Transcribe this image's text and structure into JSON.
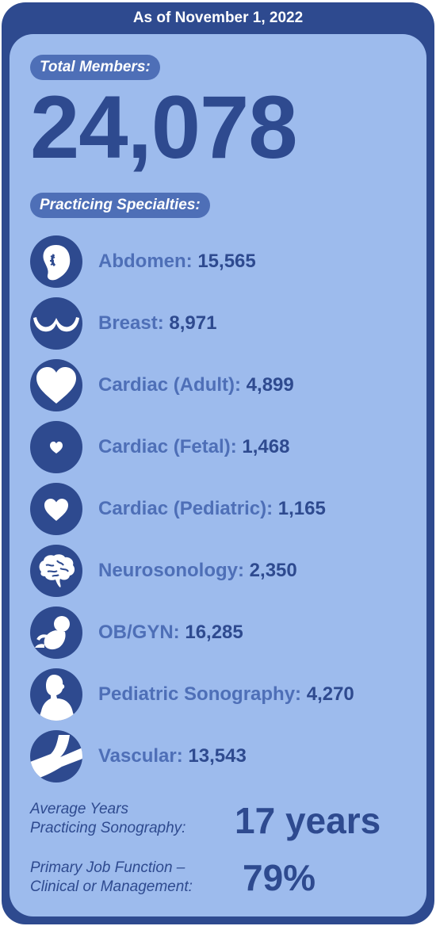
{
  "header": {
    "date_label": "As of November 1, 2022"
  },
  "total": {
    "label": "Total Members:",
    "value": "24,078"
  },
  "specialties": {
    "label": "Practicing Specialties:",
    "items": [
      {
        "icon": "kidney-icon",
        "label": "Abdomen:",
        "value": "15,565"
      },
      {
        "icon": "breast-icon",
        "label": "Breast:",
        "value": "8,971"
      },
      {
        "icon": "heart-large-icon",
        "label": "Cardiac (Adult):",
        "value": "4,899"
      },
      {
        "icon": "heart-small-icon",
        "label": "Cardiac (Fetal):",
        "value": "1,468"
      },
      {
        "icon": "heart-medium-icon",
        "label": "Cardiac (Pediatric):",
        "value": "1,165"
      },
      {
        "icon": "brain-icon",
        "label": "Neurosonology:",
        "value": "2,350"
      },
      {
        "icon": "fetus-icon",
        "label": "OB/GYN:",
        "value": "16,285"
      },
      {
        "icon": "child-icon",
        "label": "Pediatric Sonography:",
        "value": "4,270"
      },
      {
        "icon": "vessel-icon",
        "label": "Vascular:",
        "value": "13,543"
      }
    ]
  },
  "stats": {
    "years": {
      "label_line1": "Average Years",
      "label_line2": "Practicing Sonography:",
      "value": "17 years"
    },
    "job": {
      "label_line1": "Primary Job Function –",
      "label_line2": "Clinical or Management:",
      "value": "79%"
    }
  }
}
